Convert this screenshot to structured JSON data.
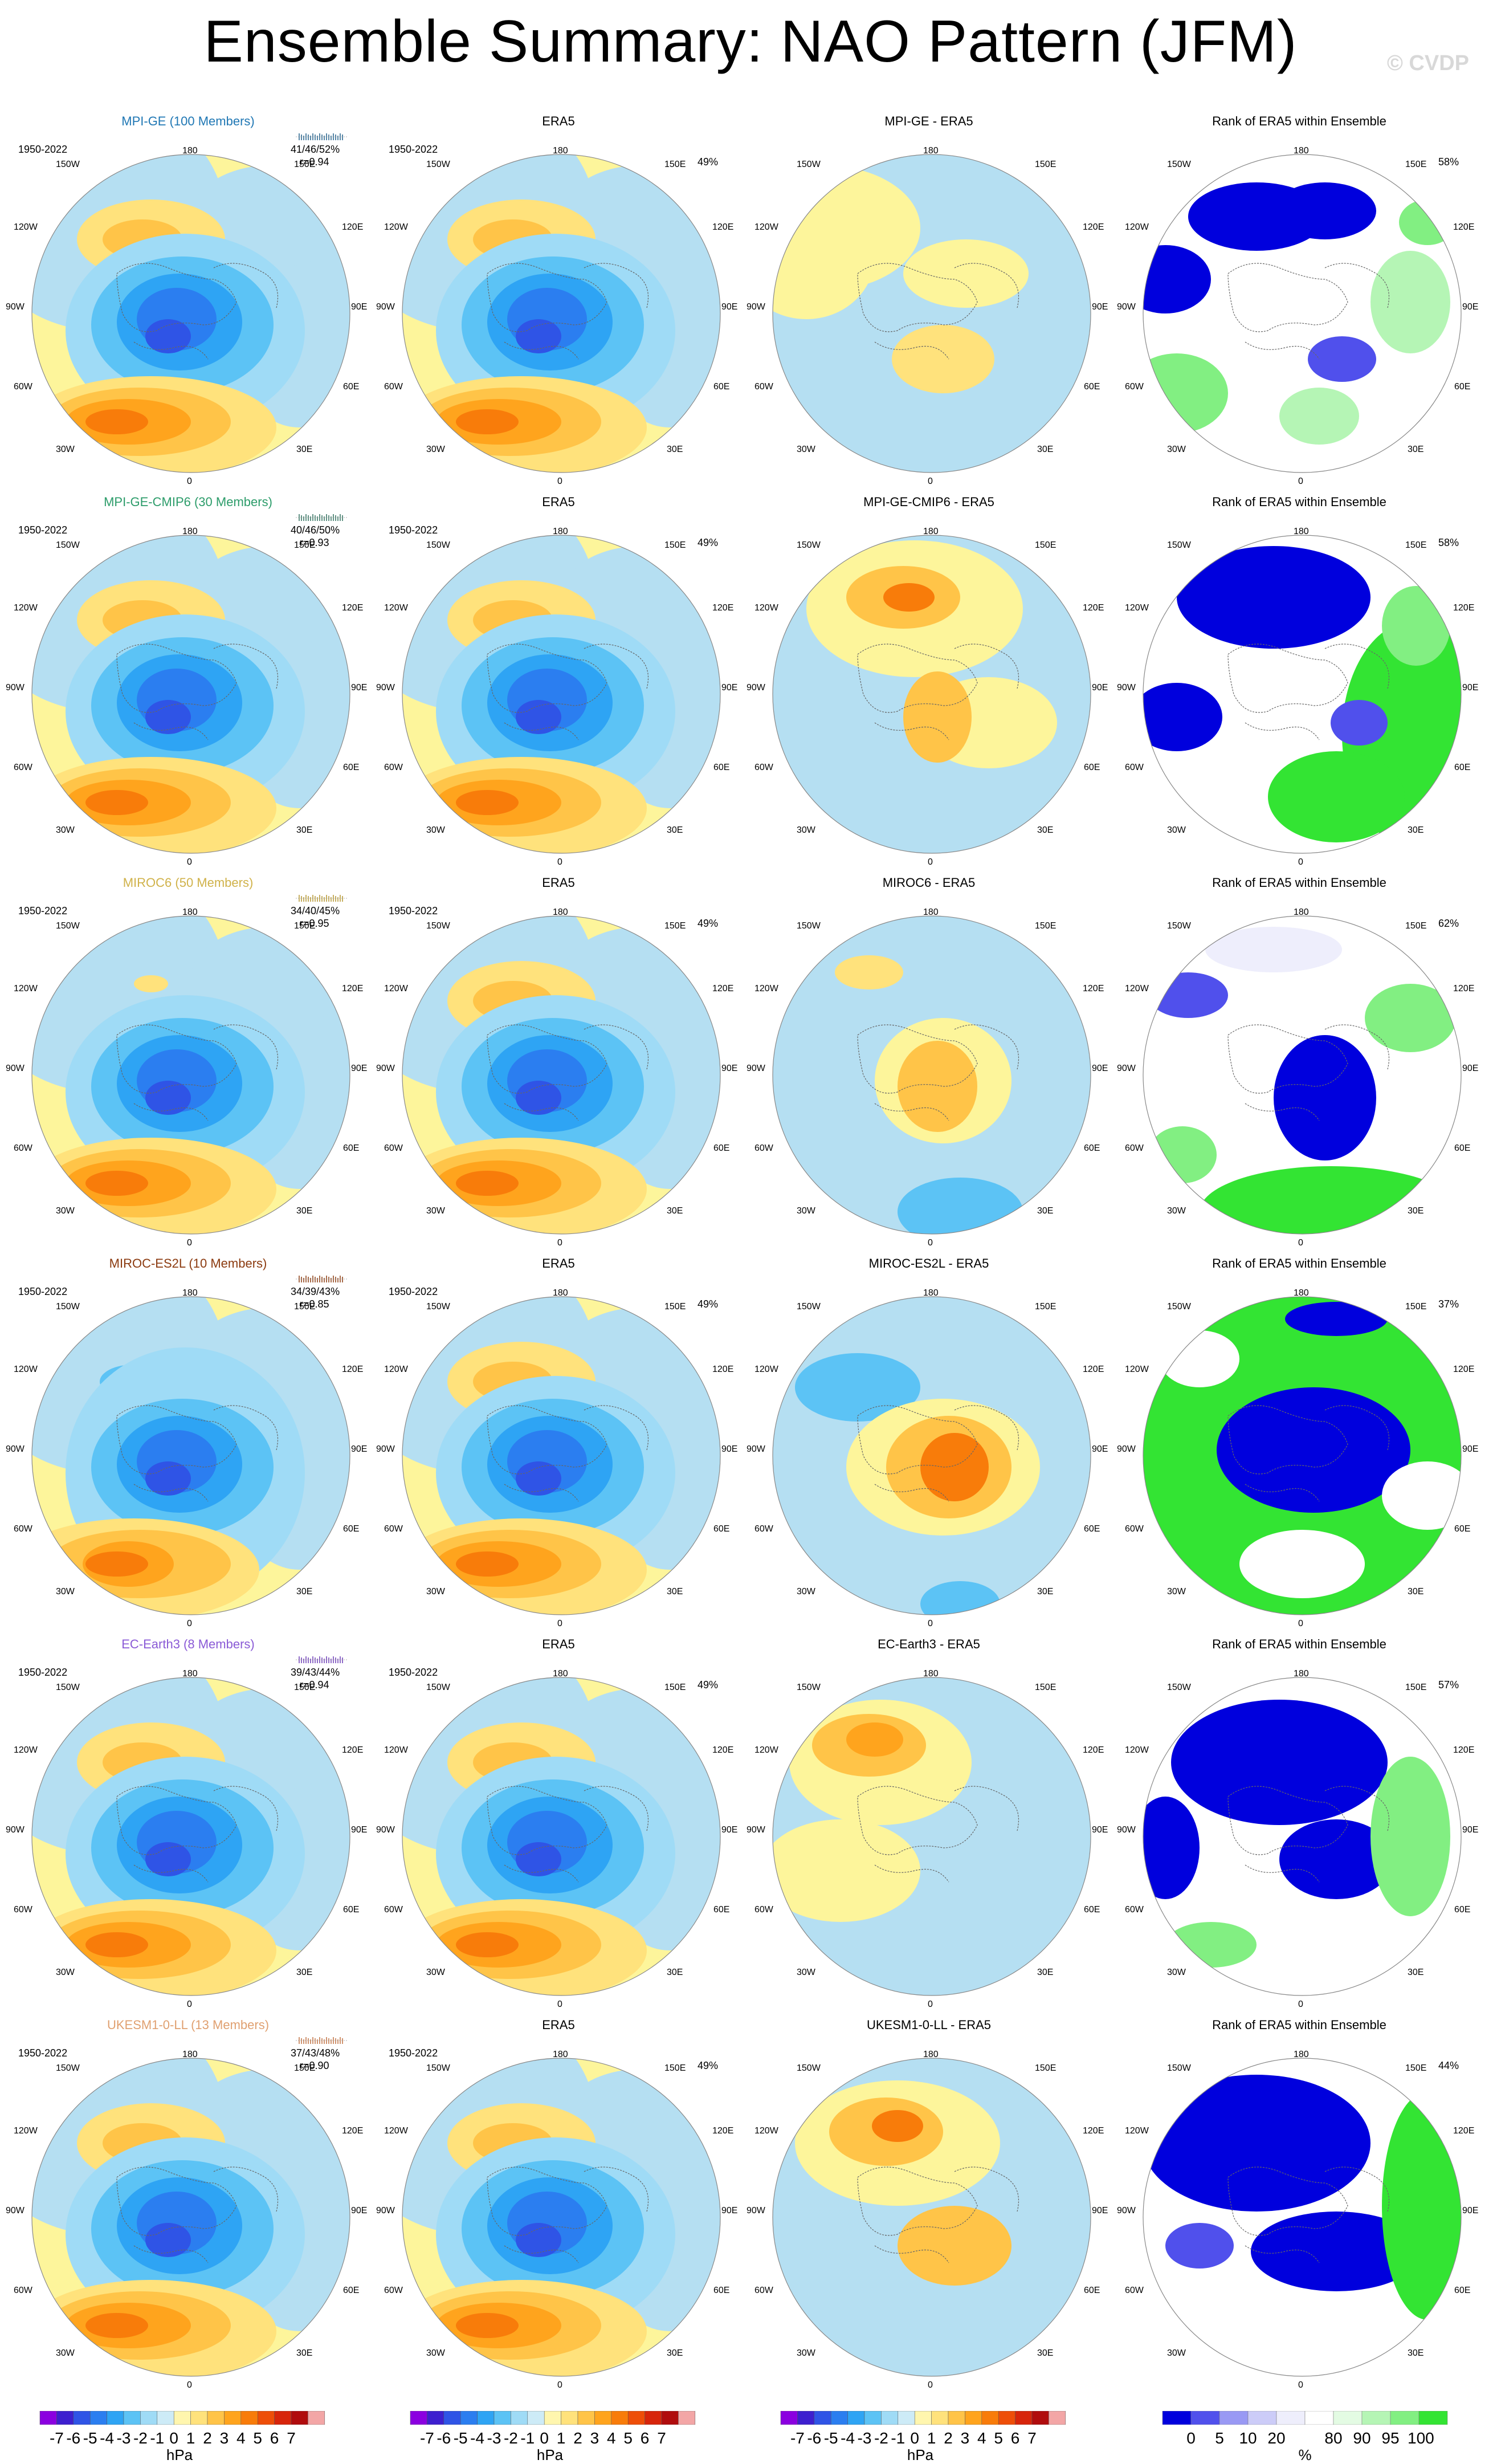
{
  "header": {
    "title": "Ensemble Summary: NAO Pattern (JFM)",
    "brand": "© CVDP"
  },
  "colors": {
    "ocean_blue": "#b5dff2",
    "pale_yellow": "#fdf59b",
    "anom_scale": [
      "#8b00e0",
      "#3d1fcf",
      "#2f54e6",
      "#2b7ef0",
      "#2ea4f4",
      "#5cc3f5",
      "#9fdbf6",
      "#cdebf7",
      "#fff6ae",
      "#ffe27c",
      "#ffc448",
      "#ffa41d",
      "#f87c0a",
      "#ee4e08",
      "#d7250b",
      "#b00c0d",
      "#f3a6a6"
    ],
    "rank_scale": [
      "#0000dd",
      "#5050ec",
      "#9999f4",
      "#ccccf8",
      "#eeeefc",
      "#ffffff",
      "#e3fbe3",
      "#b5f5b5",
      "#82ef82",
      "#33e433"
    ]
  },
  "period": "1950-2022",
  "columns": [
    "ensemble",
    "era5",
    "diff",
    "rank"
  ],
  "rows": [
    {
      "model": "MPI-GE (100 Members)",
      "model_color": "#1f77b4",
      "stats1": "41/46/52%",
      "stats2": "r=0.94",
      "era5_title": "ERA5",
      "era5_pct": "49%",
      "diff_title": "MPI-GE - ERA5",
      "rank_title": "Rank of ERA5 within Ensemble",
      "rank_pct": "58%",
      "spark_color": "#1f5f8b"
    },
    {
      "model": "MPI-GE-CMIP6 (30 Members)",
      "model_color": "#2c9c6a",
      "stats1": "40/46/50%",
      "stats2": "r=0.93",
      "era5_title": "ERA5",
      "era5_pct": "49%",
      "diff_title": "MPI-GE-CMIP6 - ERA5",
      "rank_title": "Rank of ERA5 within Ensemble",
      "rank_pct": "58%",
      "spark_color": "#2c6e5a"
    },
    {
      "model": "MIROC6 (50 Members)",
      "model_color": "#d0b24a",
      "stats1": "34/40/45%",
      "stats2": "r=0.95",
      "era5_title": "ERA5",
      "era5_pct": "49%",
      "diff_title": "MIROC6 - ERA5",
      "rank_title": "Rank of ERA5 within Ensemble",
      "rank_pct": "62%",
      "spark_color": "#b4962e"
    },
    {
      "model": "MIROC-ES2L (10 Members)",
      "model_color": "#8b3a0f",
      "stats1": "34/39/43%",
      "stats2": "r=0.85",
      "era5_title": "ERA5",
      "era5_pct": "49%",
      "diff_title": "MIROC-ES2L - ERA5",
      "rank_title": "Rank of ERA5 within Ensemble",
      "rank_pct": "37%",
      "spark_color": "#8b3a0f"
    },
    {
      "model": "EC-Earth3 (8 Members)",
      "model_color": "#8a5ad6",
      "stats1": "39/43/44%",
      "stats2": "r=0.94",
      "era5_title": "ERA5",
      "era5_pct": "49%",
      "diff_title": "EC-Earth3 - ERA5",
      "rank_title": "Rank of ERA5 within Ensemble",
      "rank_pct": "57%",
      "spark_color": "#6a3ab6"
    },
    {
      "model": "UKESM1-0-LL (13 Members)",
      "model_color": "#e0a070",
      "stats1": "37/43/48%",
      "stats2": "r=0.90",
      "era5_title": "ERA5",
      "era5_pct": "49%",
      "diff_title": "UKESM1-0-LL - ERA5",
      "rank_title": "Rank of ERA5 within Ensemble",
      "rank_pct": "44%",
      "spark_color": "#c07040"
    }
  ],
  "longitudes": {
    "top": "180",
    "bottom": "0",
    "left": "90W",
    "right": "90E",
    "ul": "150W",
    "ur": "150E",
    "ml1": "120W",
    "mr1": "120E",
    "ml2": "60W",
    "mr2": "60E",
    "ll": "30W",
    "lr": "30E"
  },
  "legends": {
    "anom_ticks": [
      "-7",
      "-6",
      "-5",
      "-4",
      "-3",
      "-2",
      "-1",
      "0",
      "1",
      "2",
      "3",
      "4",
      "5",
      "6",
      "7"
    ],
    "anom_unit": "hPa",
    "rank_ticks": [
      "0",
      "5",
      "10",
      "20",
      "80",
      "90",
      "95",
      "100"
    ],
    "rank_unit": "%"
  }
}
